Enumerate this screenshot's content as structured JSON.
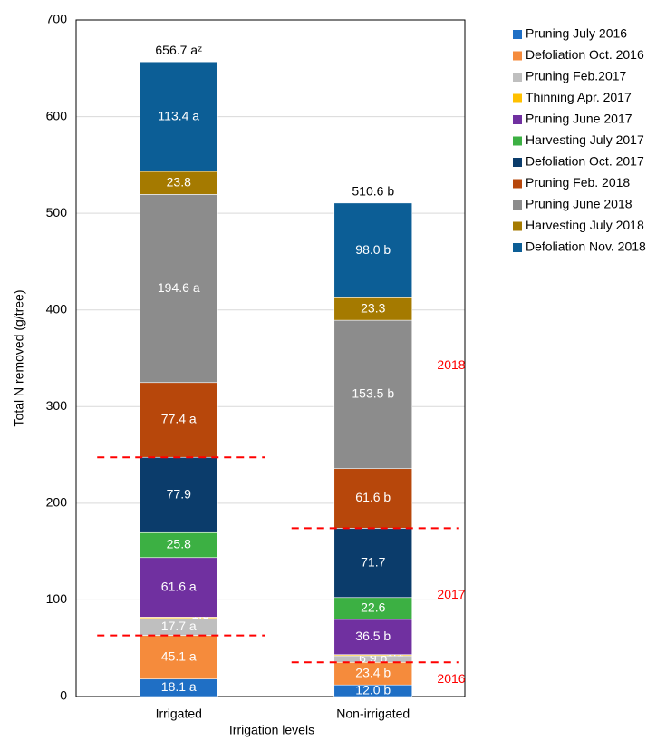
{
  "chart_data": {
    "type": "stacked_bar",
    "x_label": "Irrigation levels",
    "y_label": "Total N removed (g/tree)",
    "categories": [
      "Irrigated",
      "Non-irrigated"
    ],
    "ylim": [
      0,
      700
    ],
    "yticks": [
      0,
      100,
      200,
      300,
      400,
      500,
      600,
      700
    ],
    "grid": true,
    "legend": "right",
    "totals": [
      656.7,
      510.6
    ],
    "total_labels": [
      "656.7 aᶻ",
      "510.6 b"
    ],
    "annotations": [
      "2016",
      "2017",
      "2018"
    ],
    "annotation_color": "#ff0000",
    "series": [
      {
        "name": "Pruning July 2016",
        "color": "#1f6fc5",
        "values": [
          18.1,
          12.0
        ],
        "value_labels": [
          "18.1 a",
          "12.0 b"
        ]
      },
      {
        "name": "Defoliation Oct. 2016",
        "color": "#f58b3c",
        "values": [
          45.1,
          23.4
        ],
        "value_labels": [
          "45.1 a",
          "23.4 b"
        ]
      },
      {
        "name": "Pruning Feb.2017",
        "color": "#bfbfbf",
        "values": [
          17.7,
          6.9
        ],
        "value_labels": [
          "17.7 a",
          "6.9 b"
        ]
      },
      {
        "name": "Thinning Apr. 2017",
        "color": "#ffc000",
        "values": [
          1.3,
          1.1
        ]
      },
      {
        "name": "Pruning June 2017",
        "color": "#7030a0",
        "values": [
          61.6,
          36.5
        ],
        "value_labels": [
          "61.6 a",
          "36.5 b"
        ]
      },
      {
        "name": "Harvesting July 2017",
        "color": "#3cb043",
        "values": [
          25.8,
          22.6
        ]
      },
      {
        "name": "Defoliation Oct. 2017",
        "color": "#0b3c6b",
        "values": [
          77.9,
          71.7
        ]
      },
      {
        "name": "Pruning Feb. 2018",
        "color": "#b7470b",
        "values": [
          77.4,
          61.6
        ],
        "value_labels": [
          "77.4 a",
          "61.6 b"
        ]
      },
      {
        "name": "Pruning June 2018",
        "color": "#8c8c8c",
        "values": [
          194.6,
          153.5
        ],
        "value_labels": [
          "194.6 a",
          "153.5 b"
        ]
      },
      {
        "name": "Harvesting July 2018",
        "color": "#a57a00",
        "values": [
          23.8,
          23.3
        ]
      },
      {
        "name": "Defoliation Nov. 2018",
        "color": "#0c5e96",
        "values": [
          113.4,
          98.0
        ],
        "value_labels": [
          "113.4 a",
          "98.0 b"
        ]
      }
    ]
  }
}
